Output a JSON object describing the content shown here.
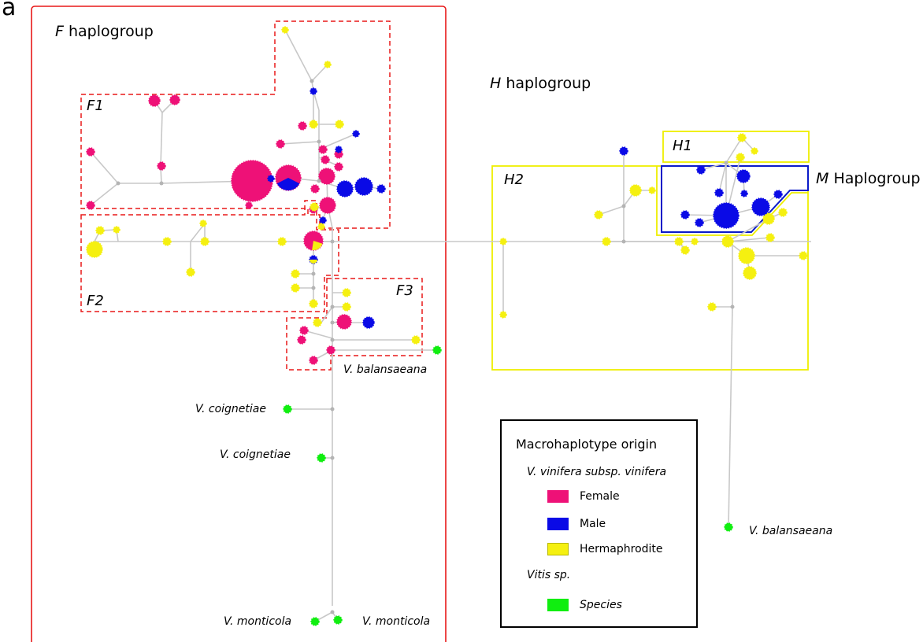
{
  "panel_letter": "a",
  "colors": {
    "female": "#ee1177",
    "male": "#0a0ae6",
    "hermaphrodite": "#f5f010",
    "species": "#10ee10",
    "f_group_border": "#e81818",
    "h_group_border": "#eeee00",
    "m_group_border": "#0a1ac8",
    "edge": "#c8c8c8",
    "junction": "#b4b4b4"
  },
  "groups": {
    "f_haplogroup": {
      "italic": "F",
      "rest": " haplogroup"
    },
    "h_haplogroup": {
      "italic": "H",
      "rest": " haplogroup"
    },
    "m_haplogroup": {
      "italic": "M",
      "rest": " Haplogroup"
    },
    "f1": "F1",
    "f2": "F2",
    "f3": "F3",
    "h1": "H1",
    "h2": "H2"
  },
  "species_labels": {
    "balansaeana_left": "V. balansaeana",
    "coignetiae_1": "V. coignetiae",
    "coignetiae_2": "V. coignetiae",
    "monticola_1": "V. monticola",
    "monticola_2": "V. monticola",
    "balansaeana_right": "V. balansaeana"
  },
  "legend": {
    "title": "Macrohaplotype origin",
    "vinifera_heading": "V. vinifera subsp. vinifera",
    "items": [
      {
        "label": "Female",
        "color": "#ee1177"
      },
      {
        "label": "Male",
        "color": "#0a0ae6"
      },
      {
        "label": "Hermaphrodite",
        "color": "#f5f010"
      }
    ],
    "vitis_heading": "Vitis sp.",
    "species_item": {
      "label": "Species",
      "color": "#10ee10"
    }
  }
}
